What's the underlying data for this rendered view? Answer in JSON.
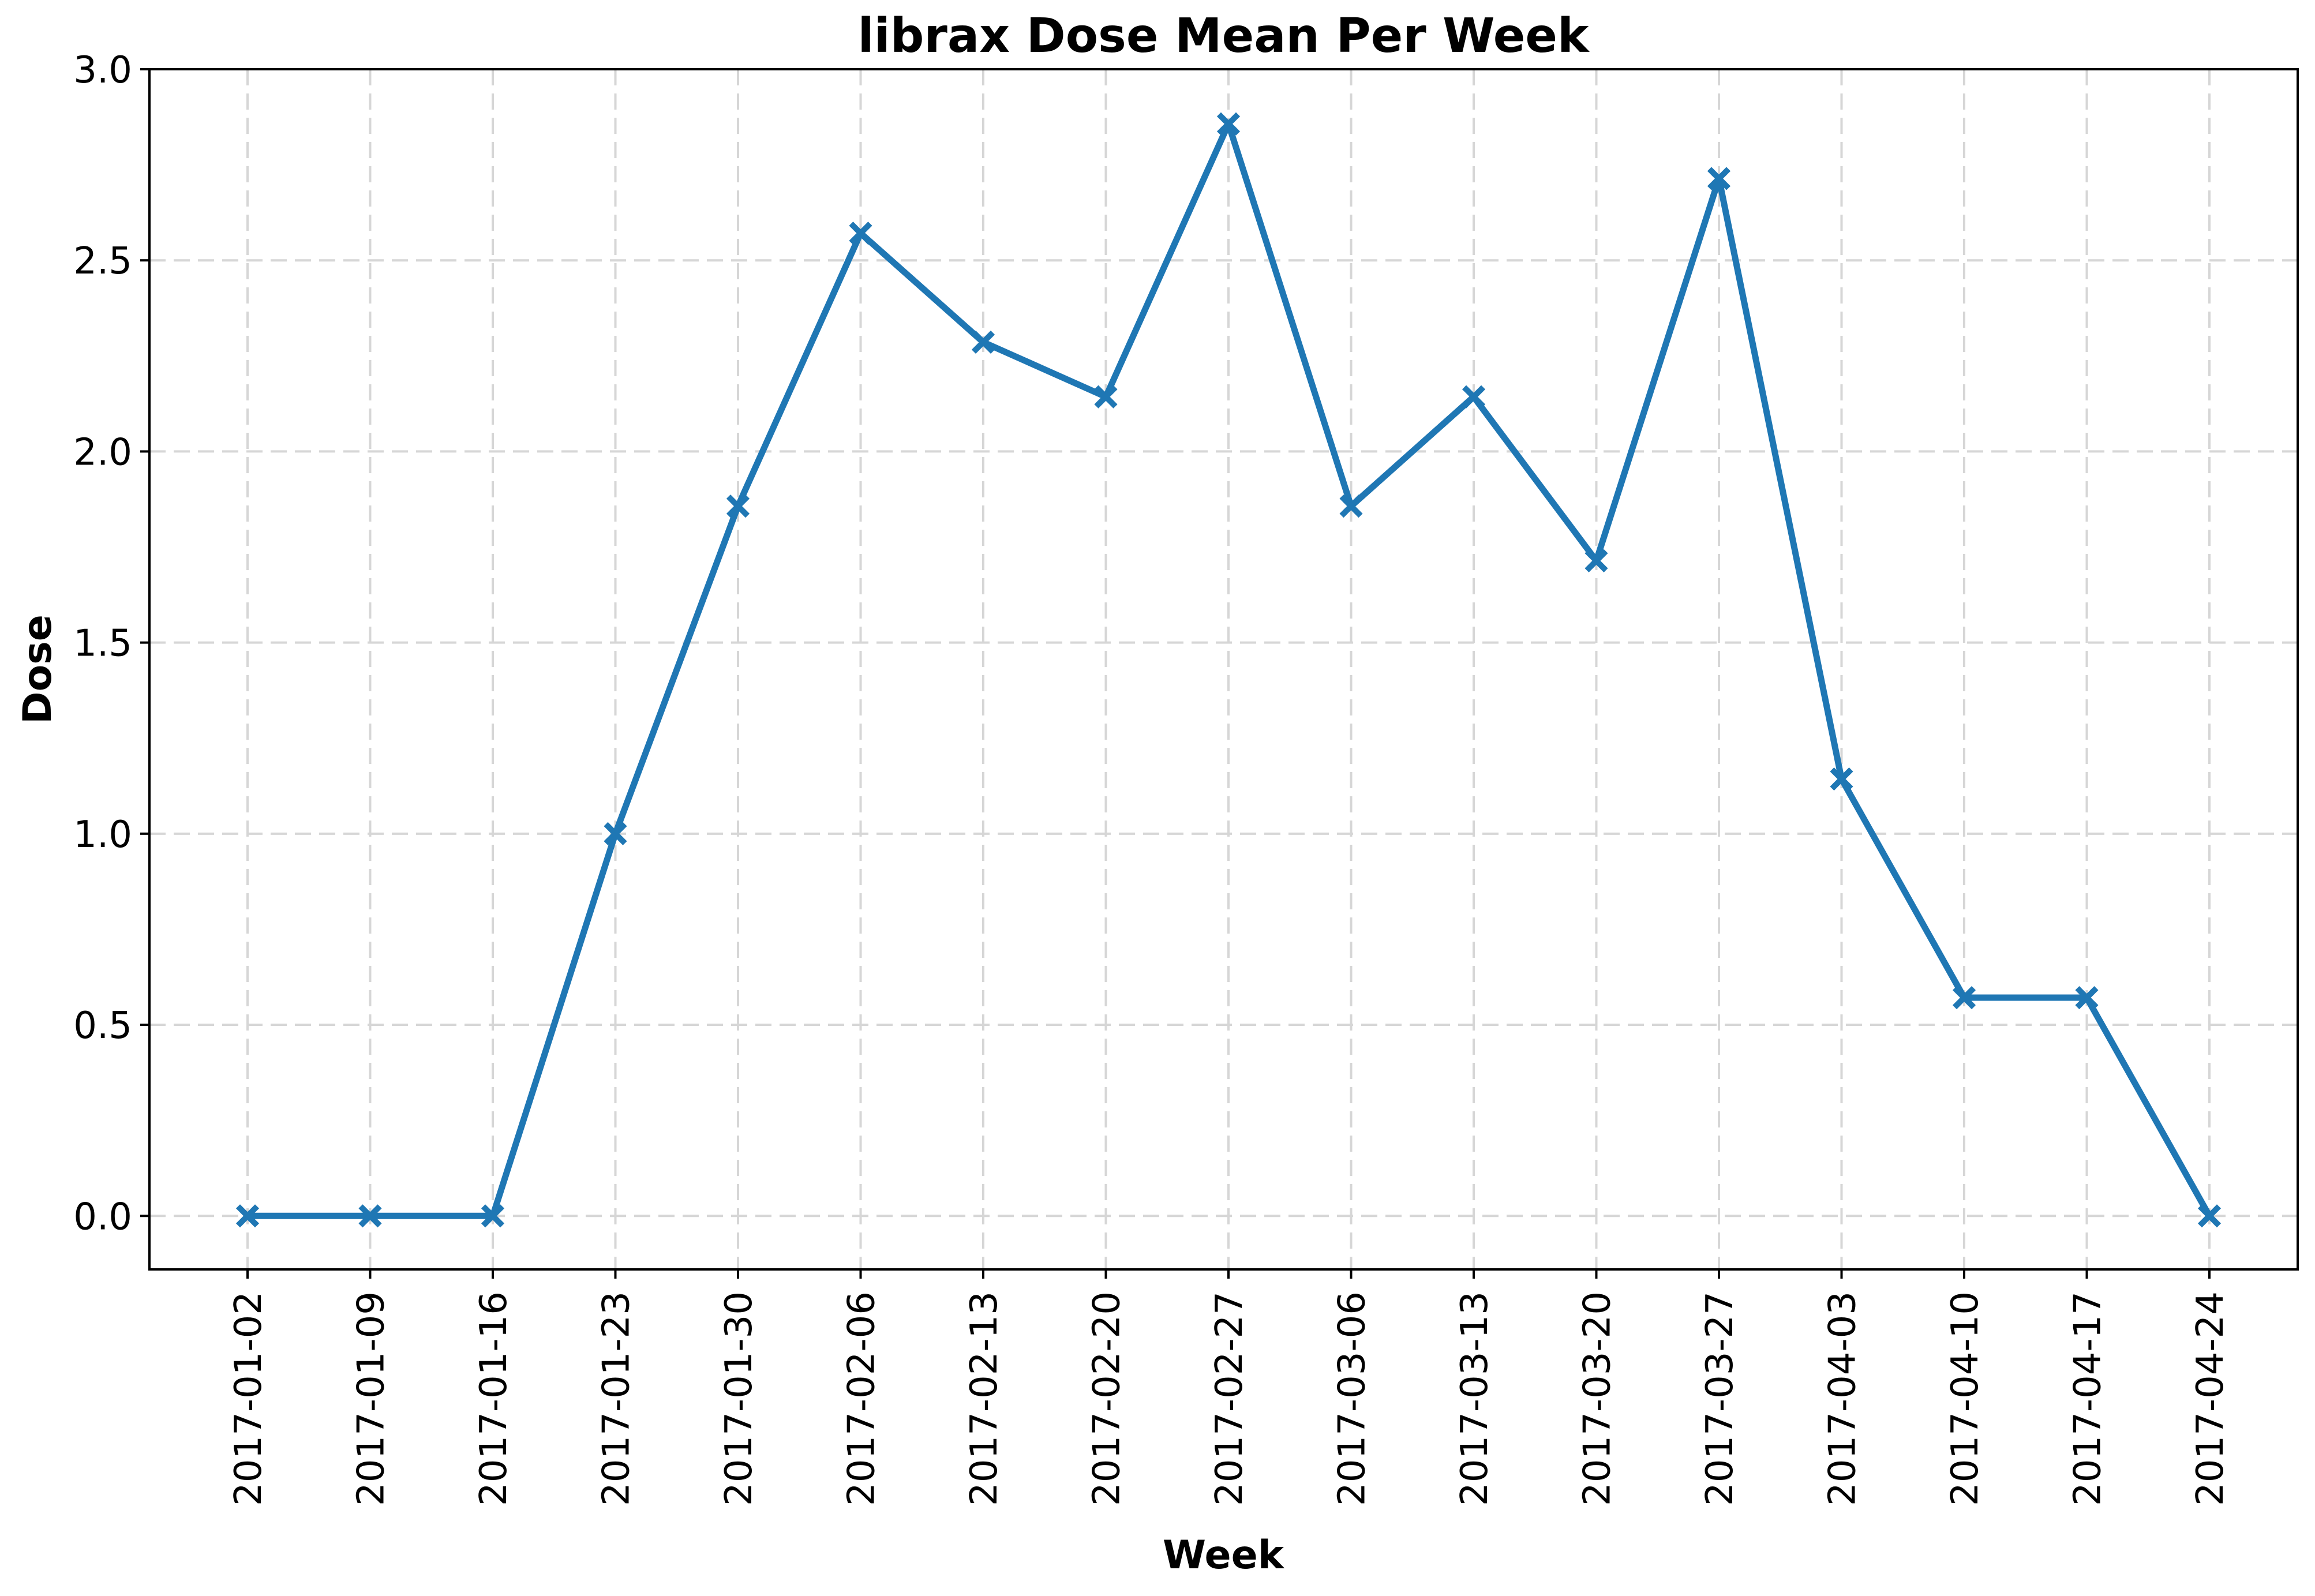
{
  "chart_data": {
    "type": "line",
    "title": "librax Dose Mean Per Week",
    "xlabel": "Week",
    "ylabel": "Dose",
    "x": [
      "2017-01-02",
      "2017-01-09",
      "2017-01-16",
      "2017-01-23",
      "2017-01-30",
      "2017-02-06",
      "2017-02-13",
      "2017-02-20",
      "2017-02-27",
      "2017-03-06",
      "2017-03-13",
      "2017-03-20",
      "2017-03-27",
      "2017-04-03",
      "2017-04-10",
      "2017-04-17",
      "2017-04-24"
    ],
    "series": [
      {
        "values": [
          0.0,
          0.0,
          0.0,
          1.0,
          1.857,
          2.571,
          2.286,
          2.143,
          2.857,
          1.857,
          2.143,
          1.714,
          2.714,
          1.143,
          0.571,
          0.571,
          0.0
        ],
        "color": "#1f77b4",
        "marker": "x-filled"
      }
    ],
    "ylim": [
      -0.14,
      3.0
    ],
    "yticks": [
      "0.0",
      "0.5",
      "1.0",
      "1.5",
      "2.0",
      "2.5",
      "3.0"
    ],
    "grid": true
  }
}
